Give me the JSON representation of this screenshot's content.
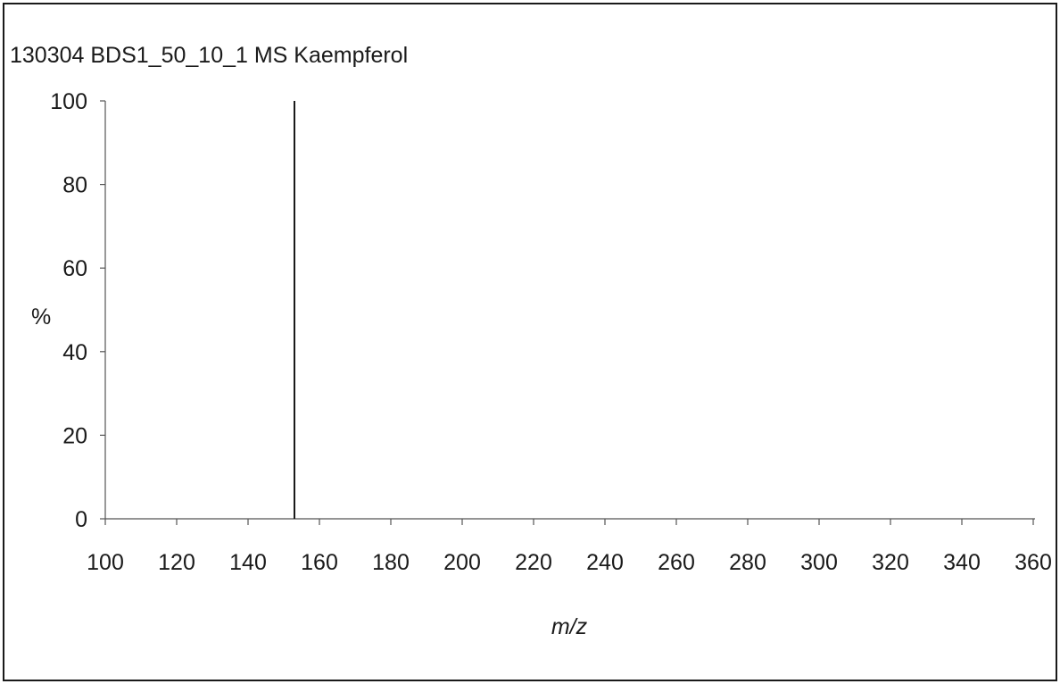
{
  "chart_data": {
    "type": "bar",
    "title": "130304 BDS1_50_10_1 MS Kaempferol",
    "xlabel": "m/z",
    "ylabel": "%",
    "xlim": [
      100,
      360
    ],
    "ylim": [
      0,
      100
    ],
    "x_ticks": [
      "100",
      "120",
      "140",
      "160",
      "180",
      "200",
      "220",
      "240",
      "260",
      "280",
      "300",
      "320",
      "340",
      "360"
    ],
    "y_ticks": [
      "0",
      "20",
      "40",
      "60",
      "80",
      "100"
    ],
    "peaks": [
      {
        "x": 153,
        "y": 100
      }
    ],
    "grid": false,
    "colors": {
      "peak": "#1a1a1a",
      "axis": "#555555",
      "text": "#1a1a1a"
    }
  }
}
